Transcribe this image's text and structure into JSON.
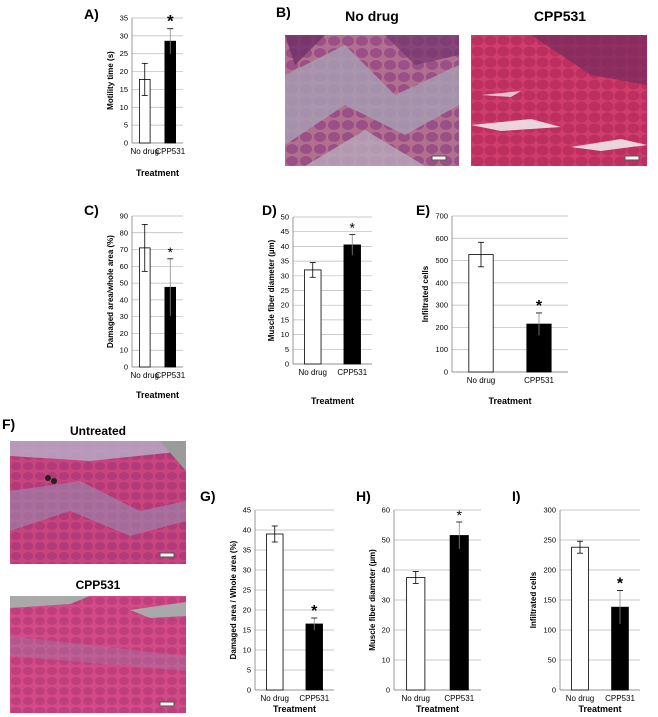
{
  "panels": {
    "a": "A)",
    "b": "B)",
    "c": "C)",
    "d": "D)",
    "e": "E)",
    "f": "F)",
    "g": "G)",
    "h": "H)",
    "i": "I)"
  },
  "images": {
    "b_left_title": "No drug",
    "b_right_title": "CPP531",
    "f_top_title": "Untreated",
    "f_bottom_title": "CPP531"
  },
  "colors": {
    "tissue_pink": "#c8397a",
    "tissue_purple": "#7a3a78",
    "tissue_grey": "#a89ab0",
    "bar_control": "#ffffff",
    "bar_treated": "#000000"
  },
  "chart_data": [
    {
      "id": "A",
      "type": "bar",
      "categories": [
        "No drug",
        "CPP531"
      ],
      "values": [
        17.8,
        28.5
      ],
      "errors": [
        4.5,
        3.5
      ],
      "significant": [
        false,
        true
      ],
      "ylabel": "Motility time (s)",
      "xlabel": "Treatment",
      "ylim": [
        0,
        35
      ],
      "yticks": [
        0,
        5,
        10,
        15,
        20,
        25,
        30,
        35
      ],
      "grid": true
    },
    {
      "id": "C",
      "type": "bar",
      "categories": [
        "No drug",
        "CPP531"
      ],
      "values": [
        71,
        47.5
      ],
      "errors": [
        14,
        17
      ],
      "significant": [
        false,
        true
      ],
      "ylabel": "Damaged area/whole area (%)",
      "xlabel": "Treatment",
      "ylim": [
        0,
        90
      ],
      "yticks": [
        0,
        10,
        20,
        30,
        40,
        50,
        60,
        70,
        80,
        90
      ],
      "grid": true
    },
    {
      "id": "D",
      "type": "bar",
      "categories": [
        "No drug",
        "CPP531"
      ],
      "values": [
        32,
        40.5
      ],
      "errors": [
        2.5,
        3.5
      ],
      "significant": [
        false,
        true
      ],
      "ylabel": "Muscle fiber diameter (µm)",
      "xlabel": "Treatment",
      "ylim": [
        0,
        50
      ],
      "yticks": [
        0,
        5,
        10,
        15,
        20,
        25,
        30,
        35,
        40,
        45,
        50
      ],
      "grid": true
    },
    {
      "id": "E",
      "type": "bar",
      "categories": [
        "No drug",
        "CPP531"
      ],
      "values": [
        527,
        215
      ],
      "errors": [
        55,
        50
      ],
      "significant": [
        false,
        true
      ],
      "ylabel": "Infiltrated cells",
      "xlabel": "Treatment",
      "ylim": [
        0,
        700
      ],
      "yticks": [
        0,
        100,
        200,
        300,
        400,
        500,
        600,
        700
      ],
      "grid": true
    },
    {
      "id": "G",
      "type": "bar",
      "categories": [
        "No drug",
        "CPP531"
      ],
      "values": [
        39,
        16.5
      ],
      "errors": [
        2,
        1.5
      ],
      "significant": [
        false,
        true
      ],
      "ylabel": "Damaged area / Whole area (%)",
      "xlabel": "Treatment",
      "ylim": [
        0,
        45
      ],
      "yticks": [
        0,
        5,
        10,
        15,
        20,
        25,
        30,
        35,
        40,
        45
      ],
      "grid": true
    },
    {
      "id": "H",
      "type": "bar",
      "categories": [
        "No drug",
        "CPP531"
      ],
      "values": [
        37.5,
        51.5
      ],
      "errors": [
        2,
        4.5
      ],
      "significant": [
        false,
        true
      ],
      "ylabel": "Muscle fiber diameter (µm)",
      "xlabel": "Treatment",
      "ylim": [
        0,
        60
      ],
      "yticks": [
        0,
        10,
        20,
        30,
        40,
        50,
        60
      ],
      "grid": true
    },
    {
      "id": "I",
      "type": "bar",
      "categories": [
        "No drug",
        "CPP531"
      ],
      "values": [
        238,
        138
      ],
      "errors": [
        10,
        28
      ],
      "significant": [
        false,
        true
      ],
      "ylabel": "Infiltrated cells",
      "xlabel": "Treatment",
      "ylim": [
        0,
        300
      ],
      "yticks": [
        0,
        50,
        100,
        150,
        200,
        250,
        300
      ],
      "grid": true
    }
  ]
}
